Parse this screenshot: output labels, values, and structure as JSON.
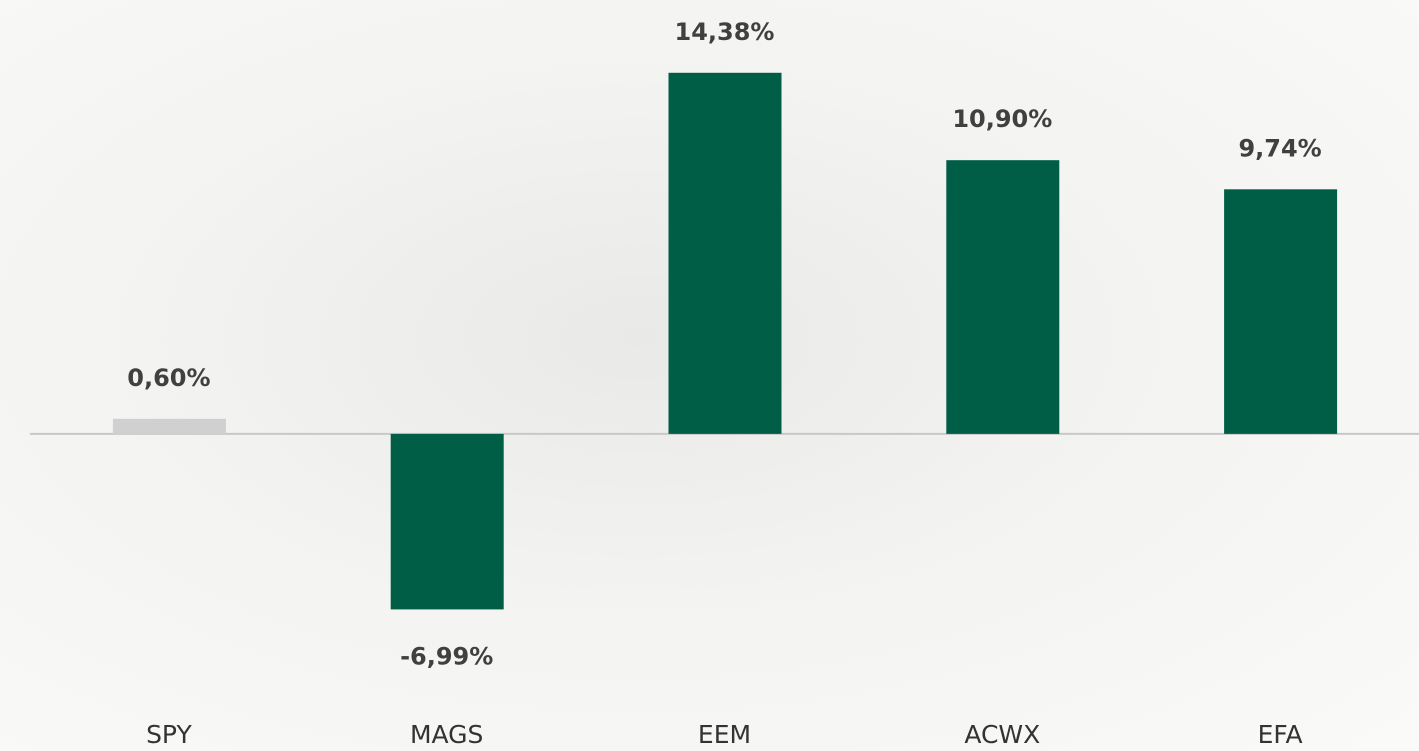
{
  "chart_data": {
    "type": "bar",
    "categories": [
      "SPY",
      "MAGS",
      "EEM",
      "ACWX",
      "EFA"
    ],
    "values": [
      0.6,
      -6.99,
      14.38,
      10.9,
      9.74
    ],
    "value_labels": [
      "0,60%",
      "-6,99%",
      "14,38%",
      "10,90%",
      "9,74%"
    ],
    "colors": [
      "#d0d0d0",
      "#005e46",
      "#005e46",
      "#005e46",
      "#005e46"
    ],
    "ylim": [
      -10,
      17
    ]
  }
}
